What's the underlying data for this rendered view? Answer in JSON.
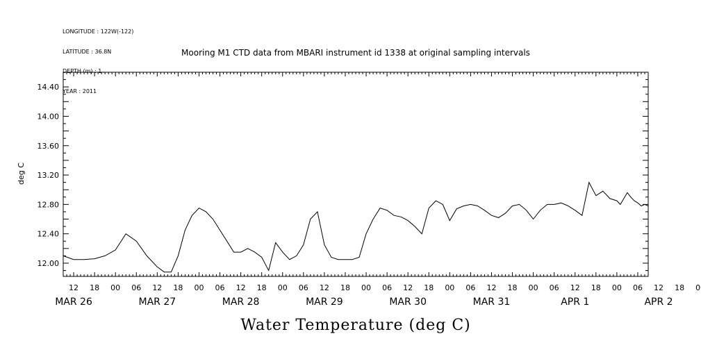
{
  "meta": {
    "longitude": "LONGITUDE : 122W(-122)",
    "latitude": "LATITUDE : 36.8N",
    "depth": "DEPTH (m) : 1",
    "year": "YEAR : 2011"
  },
  "chart_data": {
    "type": "line",
    "title": "Mooring M1 CTD data from MBARI instrument id 1338 at original sampling intervals",
    "xlabel": "Water Temperature (deg C)",
    "ylabel": "deg C",
    "grid": false,
    "xlim": [
      -15,
      153
    ],
    "ylim": [
      11.82,
      14.6
    ],
    "yticks": [
      "12.00",
      "12.40",
      "12.80",
      "13.20",
      "13.60",
      "14.00",
      "14.40"
    ],
    "hour_labels": [
      "12",
      "18",
      "00",
      "06",
      "12",
      "18",
      "00",
      "06",
      "12",
      "18",
      "00",
      "06",
      "12",
      "18",
      "00",
      "06",
      "12",
      "18",
      "00",
      "06",
      "12",
      "18",
      "00",
      "06",
      "12",
      "18",
      "00",
      "06",
      "12",
      "18",
      "00",
      "06"
    ],
    "day_labels": [
      "MAR 26",
      "MAR 27",
      "MAR 28",
      "MAR 29",
      "MAR 30",
      "MAR 31",
      "APR  1",
      "APR  2"
    ],
    "series": [
      {
        "x": [
          -15,
          -12,
          -9,
          -6,
          -3,
          0,
          3,
          6,
          9,
          12,
          14,
          16,
          18,
          20,
          22,
          24,
          26,
          28,
          30,
          32,
          34,
          36,
          38,
          40,
          42,
          44,
          46,
          48,
          50,
          52,
          54,
          56,
          58,
          60,
          62,
          64,
          66,
          68,
          70,
          72,
          74,
          76,
          78,
          80,
          82,
          84,
          86,
          88,
          90,
          92,
          94,
          96,
          98,
          100,
          102,
          104,
          106,
          108,
          110,
          112,
          114,
          116,
          118,
          120,
          122,
          124,
          126,
          128,
          130,
          132,
          134,
          136,
          138,
          140,
          142,
          144,
          145,
          146,
          147,
          148,
          149,
          150,
          151,
          152,
          153
        ],
        "y": [
          12.1,
          12.05,
          12.05,
          12.06,
          12.1,
          12.18,
          12.4,
          12.3,
          12.1,
          11.95,
          11.88,
          11.88,
          12.1,
          12.45,
          12.65,
          12.75,
          12.7,
          12.6,
          12.45,
          12.3,
          12.15,
          12.15,
          12.2,
          12.15,
          12.08,
          11.9,
          12.28,
          12.15,
          12.05,
          12.1,
          12.25,
          12.6,
          12.7,
          12.25,
          12.08,
          12.05,
          12.05,
          12.05,
          12.08,
          12.4,
          12.6,
          12.75,
          12.72,
          12.65,
          12.63,
          12.58,
          12.5,
          12.4,
          12.75,
          12.85,
          12.8,
          12.58,
          12.74,
          12.78,
          12.8,
          12.78,
          12.72,
          12.65,
          12.62,
          12.68,
          12.78,
          12.8,
          12.72,
          12.6,
          12.72,
          12.8,
          12.8,
          12.82,
          12.78,
          12.72,
          12.65,
          13.1,
          12.92,
          12.98,
          12.88,
          12.85,
          12.8,
          12.88,
          12.96,
          12.9,
          12.85,
          12.82,
          12.78,
          12.8,
          12.78
        ]
      }
    ]
  }
}
